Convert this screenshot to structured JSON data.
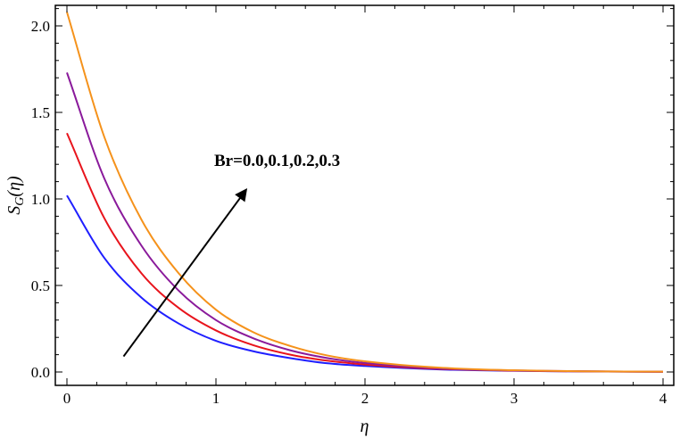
{
  "chart_data": {
    "type": "line",
    "title": "",
    "xlabel": "η",
    "ylabel_main": "S",
    "ylabel_sub": "G",
    "ylabel_paren": "(η)",
    "xlim": [
      0,
      4
    ],
    "ylim": [
      -0.05,
      2.15
    ],
    "xticks": [
      0,
      1,
      2,
      3,
      4
    ],
    "xtick_labels": [
      "0",
      "1",
      "2",
      "3",
      "4"
    ],
    "yticks": [
      0,
      0.5,
      1.0,
      1.5,
      2.0
    ],
    "ytick_labels": [
      "0.0",
      "0.5",
      "1.0",
      "1.5",
      "2.0"
    ],
    "grid": false,
    "annotation": {
      "text": "Br=0.0,0.1,0.2,0.3",
      "arrow_from": [
        0.38,
        0.09
      ],
      "arrow_to": [
        1.2,
        1.05
      ]
    },
    "series": [
      {
        "color": "#1f1fff",
        "x": [
          0,
          0.25,
          0.5,
          0.75,
          1.0,
          1.25,
          1.5,
          1.75,
          2.0,
          2.5,
          3.0,
          3.5,
          4.0
        ],
        "y": [
          1.02,
          0.66,
          0.43,
          0.28,
          0.18,
          0.12,
          0.08,
          0.05,
          0.035,
          0.015,
          0.007,
          0.003,
          0.001
        ]
      },
      {
        "color": "#e8141c",
        "x": [
          0,
          0.25,
          0.5,
          0.75,
          1.0,
          1.25,
          1.5,
          1.75,
          2.0,
          2.5,
          3.0,
          3.5,
          4.0
        ],
        "y": [
          1.38,
          0.89,
          0.57,
          0.37,
          0.24,
          0.155,
          0.1,
          0.065,
          0.043,
          0.018,
          0.008,
          0.003,
          0.001
        ]
      },
      {
        "color": "#8a1a9b",
        "x": [
          0,
          0.25,
          0.5,
          0.75,
          1.0,
          1.25,
          1.5,
          1.75,
          2.0,
          2.5,
          3.0,
          3.5,
          4.0
        ],
        "y": [
          1.73,
          1.12,
          0.73,
          0.47,
          0.3,
          0.195,
          0.125,
          0.08,
          0.052,
          0.021,
          0.009,
          0.004,
          0.001
        ]
      },
      {
        "color": "#f5921b",
        "x": [
          0,
          0.25,
          0.5,
          0.75,
          1.0,
          1.25,
          1.5,
          1.75,
          2.0,
          2.5,
          3.0,
          3.5,
          4.0
        ],
        "y": [
          2.08,
          1.36,
          0.88,
          0.57,
          0.36,
          0.23,
          0.15,
          0.095,
          0.062,
          0.025,
          0.01,
          0.004,
          0.002
        ]
      }
    ]
  }
}
